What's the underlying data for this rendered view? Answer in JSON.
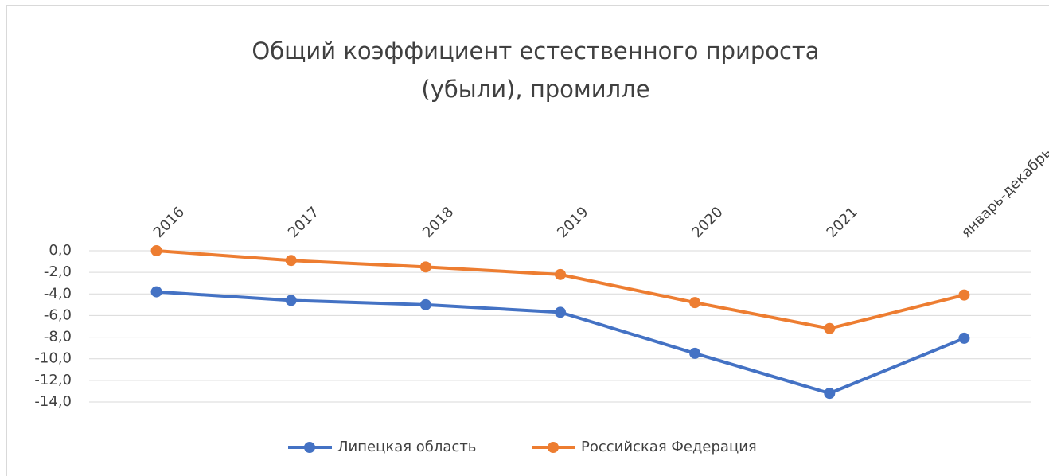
{
  "chart_data": {
    "type": "line",
    "title": "Общий коэффициент естественного прироста (убыли), промилле",
    "categories": [
      "2016",
      "2017",
      "2018",
      "2019",
      "2020",
      "2021",
      "январь-декабрь"
    ],
    "series": [
      {
        "name": "Липецкая область",
        "color": "#4472c4",
        "values": [
          -3.8,
          -4.6,
          -5.0,
          -5.7,
          -9.5,
          -13.2,
          -8.1
        ]
      },
      {
        "name": "Российская Федерация",
        "color": "#ed7d31",
        "values": [
          0.0,
          -0.9,
          -1.5,
          -2.2,
          -4.8,
          -7.2,
          -4.1
        ]
      }
    ],
    "ylim": [
      -14,
      0
    ],
    "yticks": [
      {
        "value": 0,
        "label": "0,0"
      },
      {
        "value": -2,
        "label": "-2,0"
      },
      {
        "value": -4,
        "label": "-4,0"
      },
      {
        "value": -6,
        "label": "-6,0"
      },
      {
        "value": -8,
        "label": "-8,0"
      },
      {
        "value": -10,
        "label": "-10,0"
      },
      {
        "value": -12,
        "label": "-12,0"
      },
      {
        "value": -14,
        "label": "-14,0"
      }
    ],
    "grid": true,
    "legend": "bottom"
  }
}
